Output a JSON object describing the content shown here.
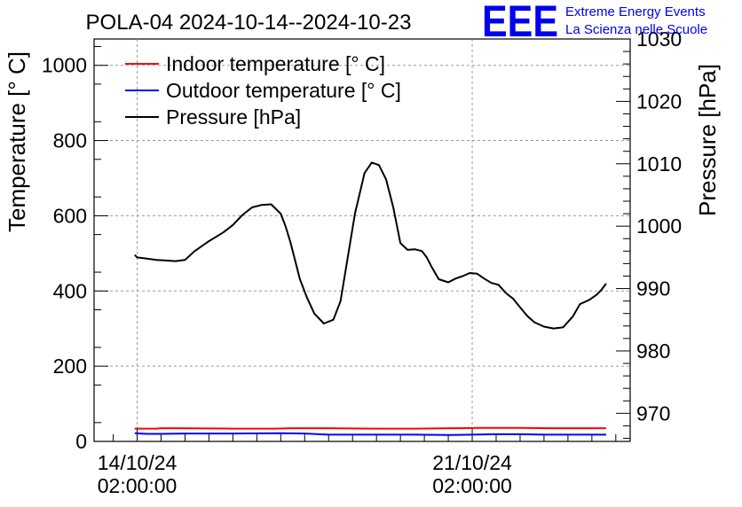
{
  "chart_data": {
    "type": "line",
    "title": "POLA-04 2024-10-14--2024-10-23",
    "ylabel_left": "Temperature [° C]",
    "ylabel_right": "Pressure [hPa]",
    "ylim_left": [
      0,
      1070
    ],
    "ylim_right": [
      965.5,
      1030
    ],
    "y_ticks_left": [
      0,
      200,
      400,
      600,
      800,
      1000
    ],
    "y_ticks_right": [
      970,
      980,
      990,
      1000,
      1010,
      1020,
      1030
    ],
    "x_range_days": [
      -0.9,
      10.3
    ],
    "x_ticks": [
      {
        "day": 0,
        "date": "14/10/24",
        "time": "02:00:00"
      },
      {
        "day": 7,
        "date": "21/10/24",
        "time": "02:00:00"
      }
    ],
    "grid": true,
    "legend_position": "top-left",
    "legend": [
      {
        "label": "Indoor temperature [° C]",
        "color": "#ff0000"
      },
      {
        "label": "Outdoor temperature [° C]",
        "color": "#0000ff"
      },
      {
        "label": "Pressure [hPa]",
        "color": "#000000"
      }
    ],
    "series": [
      {
        "name": "Pressure [hPa]",
        "axis": "right",
        "color": "#000000",
        "x": [
          -0.05,
          0.0,
          0.2,
          0.4,
          0.6,
          0.8,
          1.0,
          1.2,
          1.5,
          1.8,
          2.0,
          2.2,
          2.4,
          2.6,
          2.8,
          3.0,
          3.1,
          3.2,
          3.3,
          3.4,
          3.55,
          3.7,
          3.9,
          4.1,
          4.25,
          4.4,
          4.55,
          4.75,
          4.9,
          5.05,
          5.2,
          5.35,
          5.5,
          5.65,
          5.8,
          5.95,
          6.05,
          6.15,
          6.3,
          6.5,
          6.65,
          6.8,
          6.95,
          7.1,
          7.25,
          7.4,
          7.55,
          7.7,
          7.85,
          8.0,
          8.15,
          8.3,
          8.5,
          8.7,
          8.9,
          9.1,
          9.25,
          9.45,
          9.6,
          9.7,
          9.8
        ],
        "values": [
          995.4,
          995.0,
          994.8,
          994.6,
          994.5,
          994.4,
          994.6,
          996.0,
          997.6,
          999.0,
          1000.2,
          1001.8,
          1003.0,
          1003.4,
          1003.5,
          1002.0,
          1000.0,
          997.5,
          994.5,
          991.5,
          988.5,
          986.0,
          984.4,
          985.0,
          988.0,
          995.0,
          1002.0,
          1008.5,
          1010.2,
          1009.8,
          1007.5,
          1003.0,
          997.3,
          996.2,
          996.3,
          996.0,
          995.0,
          993.5,
          991.5,
          991.0,
          991.6,
          992.0,
          992.5,
          992.4,
          991.6,
          990.9,
          990.6,
          989.3,
          988.4,
          987.0,
          985.6,
          984.6,
          983.9,
          983.6,
          983.8,
          985.5,
          987.5,
          988.2,
          989.0,
          989.8,
          990.8
        ]
      },
      {
        "name": "Indoor temperature [° C]",
        "axis": "left",
        "color": "#ff0000",
        "x": [
          -0.05,
          0.4,
          0.5,
          0.8,
          2.0,
          2.9,
          3.2,
          4.0,
          5.0,
          5.8,
          6.7,
          7.2,
          8.0,
          8.6,
          9.4,
          9.8
        ],
        "values": [
          34,
          34,
          35,
          35,
          34,
          34,
          35,
          35,
          34,
          34,
          35,
          36,
          36,
          35,
          35,
          35
        ]
      },
      {
        "name": "Outdoor temperature [° C]",
        "axis": "left",
        "color": "#0000ff",
        "x": [
          -0.05,
          0.2,
          0.5,
          1.0,
          2.0,
          3.0,
          3.5,
          4.0,
          5.0,
          5.8,
          6.5,
          7.0,
          7.5,
          8.0,
          8.5,
          9.0,
          9.8
        ],
        "values": [
          22,
          20,
          20,
          21,
          21,
          22,
          21,
          18,
          18,
          18,
          17,
          18,
          19,
          19,
          18,
          18,
          18
        ]
      }
    ]
  },
  "logo": {
    "mark": "EEE",
    "line1": "Extreme Energy Events",
    "line2": "La Scienza nelle Scuole"
  }
}
